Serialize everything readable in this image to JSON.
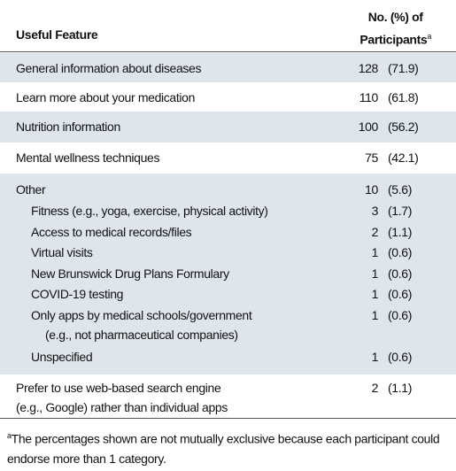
{
  "header": {
    "feature": "Useful Feature",
    "participants_line1": "No. (%) of",
    "participants_line2": "Participants",
    "participants_note": "a"
  },
  "table": {
    "rows": [
      {
        "label": "General information about diseases",
        "count": 128,
        "percent": "(71.9)"
      },
      {
        "label": "Learn more about your medication",
        "count": 110,
        "percent": "(61.8)"
      },
      {
        "label": "Nutrition information",
        "count": 100,
        "percent": "(56.2)"
      },
      {
        "label": "Mental wellness techniques",
        "count": 75,
        "percent": "(42.1)"
      },
      {
        "label": "Other",
        "count": 10,
        "percent": "(5.6)",
        "subrows": [
          {
            "label": "Fitness (e.g., yoga, exercise, physical activity)",
            "count": 3,
            "percent": "(1.7)"
          },
          {
            "label": "Access to medical records/files",
            "count": 2,
            "percent": "(1.1)"
          },
          {
            "label": "Virtual visits",
            "count": 1,
            "percent": "(0.6)"
          },
          {
            "label": "New Brunswick Drug Plans Formulary",
            "count": 1,
            "percent": "(0.6)"
          },
          {
            "label": "COVID-19 testing",
            "count": 1,
            "percent": "(0.6)"
          },
          {
            "label": "Only apps by medical schools/government\n(e.g., not pharmaceutical companies)",
            "count": 1,
            "percent": "(0.6)"
          },
          {
            "label": "Unspecified",
            "count": 1,
            "percent": "(0.6)"
          }
        ]
      },
      {
        "label": "Prefer to use web-based search engine\n(e.g., Google) rather than individual apps",
        "count": 2,
        "percent": "(1.1)"
      }
    ]
  },
  "footnote": {
    "mark": "a",
    "text": "The percentages shown are not mutually exclusive because each participant could endorse more than 1 category."
  }
}
